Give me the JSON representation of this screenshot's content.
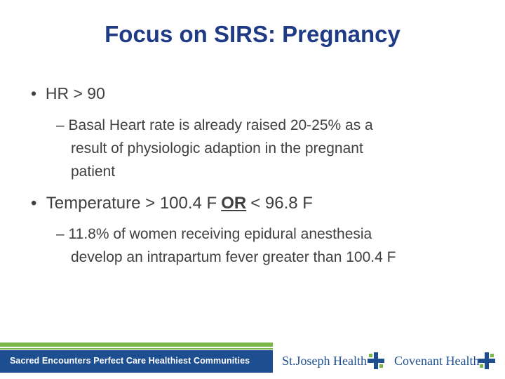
{
  "title": "Focus on SIRS: Pregnancy",
  "bullets": [
    {
      "text": "HR > 90",
      "sub": {
        "lines": [
          "– Basal Heart rate is already raised 20-25% as a",
          "result of physiologic adaption in the pregnant",
          "patient"
        ]
      }
    },
    {
      "parts": [
        "Temperature > 100.4 F",
        "OR",
        "< 96.8 F"
      ],
      "sub": {
        "lines": [
          "– 11.8% of women receiving epidural anesthesia",
          "develop an intrapartum fever greater than 100.4 F"
        ]
      }
    }
  ],
  "footer": {
    "tagline": "Sacred Encounters  Perfect Care  Healthiest Communities",
    "logos": [
      "St.Joseph Health",
      "Covenant Health"
    ]
  }
}
